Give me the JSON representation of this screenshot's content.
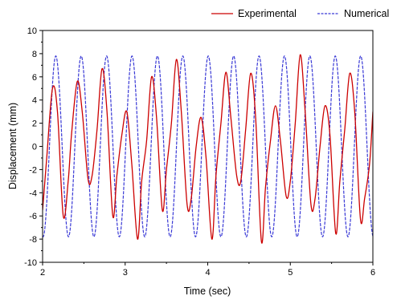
{
  "chart_data": {
    "type": "line",
    "title": "",
    "xlabel": "Time (sec)",
    "ylabel": "Displacement (mm)",
    "xlim": [
      2,
      6
    ],
    "ylim": [
      -10,
      10
    ],
    "xticks": [
      "2",
      "3",
      "4",
      "5",
      "6"
    ],
    "yticks": [
      "10",
      "8",
      "6",
      "4",
      "2",
      "0",
      "-2",
      "-4",
      "-6",
      "-8",
      "-10"
    ],
    "grid": false,
    "legend_position": "top-right",
    "series": [
      {
        "name": "Experimental",
        "color": "#cc0000",
        "x": [
          2.0,
          2.05,
          2.12,
          2.18,
          2.25,
          2.31,
          2.35,
          2.42,
          2.48,
          2.55,
          2.6,
          2.66,
          2.72,
          2.78,
          2.85,
          2.9,
          2.96,
          3.02,
          3.08,
          3.15,
          3.2,
          3.26,
          3.32,
          3.38,
          3.45,
          3.5,
          3.56,
          3.62,
          3.68,
          3.75,
          3.8,
          3.86,
          3.92,
          3.98,
          4.05,
          4.1,
          4.16,
          4.22,
          4.28,
          4.35,
          4.4,
          4.46,
          4.52,
          4.58,
          4.65,
          4.7,
          4.76,
          4.82,
          4.88,
          4.95,
          5.0,
          5.06,
          5.12,
          5.18,
          5.25,
          5.3,
          5.36,
          5.42,
          5.48,
          5.55,
          5.6,
          5.66,
          5.72,
          5.78,
          5.85,
          5.9,
          5.96,
          6.0
        ],
        "y": [
          -5.5,
          -1.0,
          5.0,
          3.0,
          -6.0,
          -3.0,
          1.0,
          5.6,
          3.0,
          -2.8,
          -2.5,
          1.5,
          6.7,
          3.0,
          -6.0,
          -2.5,
          1.0,
          3.0,
          -1.5,
          -8.0,
          -3.0,
          0.5,
          6.0,
          2.5,
          -5.5,
          -2.0,
          2.0,
          7.5,
          3.0,
          -5.0,
          -4.5,
          0.0,
          2.5,
          -1.0,
          -8.0,
          -2.5,
          2.0,
          6.4,
          2.5,
          -2.5,
          -3.0,
          1.5,
          6.3,
          2.5,
          -8.2,
          -3.5,
          0.5,
          3.5,
          0.5,
          -4.3,
          -3.0,
          2.0,
          7.9,
          3.0,
          -5.0,
          -4.5,
          0.0,
          3.5,
          1.0,
          -7.5,
          -3.0,
          1.5,
          6.3,
          3.0,
          -6.3,
          -4.5,
          -1.5,
          3.0
        ]
      },
      {
        "name": "Numerical",
        "color": "#3a3ad6",
        "function": "sinusoid",
        "amplitude": 7.8,
        "frequency_hz": 3.25,
        "peak_at": 2.16,
        "x_range": [
          2.0,
          6.0
        ]
      }
    ]
  }
}
